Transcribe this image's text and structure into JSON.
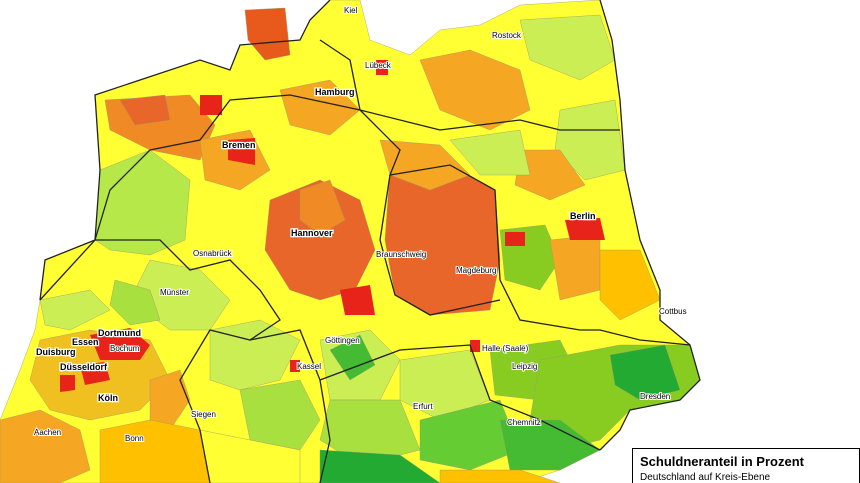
{
  "map": {
    "cities": [
      "Kiel",
      "Rostock",
      "Lübeck",
      "Hamburg",
      "Bremen",
      "Berlin",
      "Hannover",
      "Osnabrück",
      "Braunschweig",
      "Magdeburg",
      "Münster",
      "Cottbus",
      "Dortmund",
      "Essen",
      "Bochum",
      "Duisburg",
      "Göttingen",
      "Halle (Saale)",
      "Düsseldorf",
      "Leipzig",
      "Kassel",
      "Köln",
      "Dresden",
      "Erfurt",
      "Siegen",
      "Chemnitz",
      "Aachen",
      "Bonn"
    ],
    "legend": {
      "title": "Schuldneranteil in Prozent",
      "subtitle": "Deutschland auf Kreis-Ebene"
    }
  }
}
